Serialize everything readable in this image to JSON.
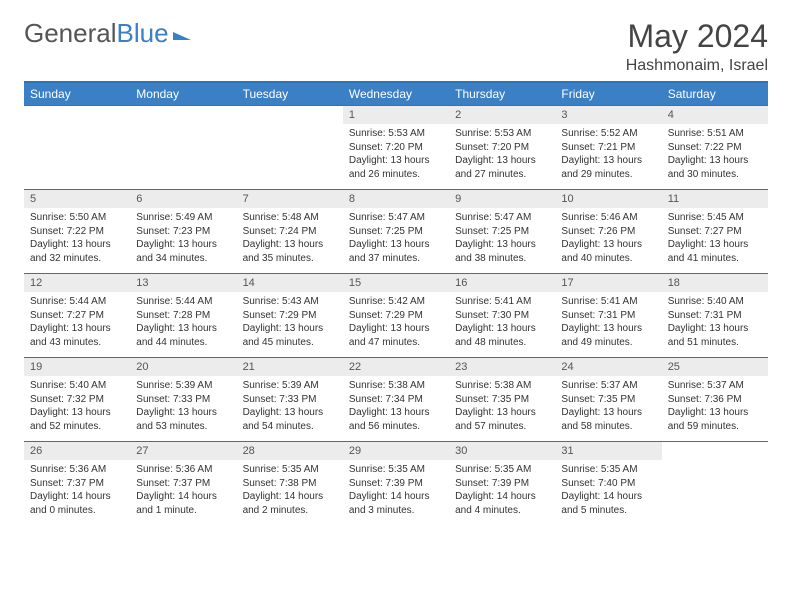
{
  "logo": {
    "part1": "General",
    "part2": "Blue"
  },
  "header": {
    "month_title": "May 2024",
    "location": "Hashmonaim, Israel"
  },
  "colors": {
    "header_bg": "#3b7fc4",
    "header_text": "#ffffff",
    "daynum_bg": "#ececec",
    "rule": "#2d74b5",
    "body_text": "#333333"
  },
  "day_labels": [
    "Sunday",
    "Monday",
    "Tuesday",
    "Wednesday",
    "Thursday",
    "Friday",
    "Saturday"
  ],
  "weeks": [
    [
      {
        "num": "",
        "lines": []
      },
      {
        "num": "",
        "lines": []
      },
      {
        "num": "",
        "lines": []
      },
      {
        "num": "1",
        "lines": [
          "Sunrise: 5:53 AM",
          "Sunset: 7:20 PM",
          "Daylight: 13 hours",
          "and 26 minutes."
        ]
      },
      {
        "num": "2",
        "lines": [
          "Sunrise: 5:53 AM",
          "Sunset: 7:20 PM",
          "Daylight: 13 hours",
          "and 27 minutes."
        ]
      },
      {
        "num": "3",
        "lines": [
          "Sunrise: 5:52 AM",
          "Sunset: 7:21 PM",
          "Daylight: 13 hours",
          "and 29 minutes."
        ]
      },
      {
        "num": "4",
        "lines": [
          "Sunrise: 5:51 AM",
          "Sunset: 7:22 PM",
          "Daylight: 13 hours",
          "and 30 minutes."
        ]
      }
    ],
    [
      {
        "num": "5",
        "lines": [
          "Sunrise: 5:50 AM",
          "Sunset: 7:22 PM",
          "Daylight: 13 hours",
          "and 32 minutes."
        ]
      },
      {
        "num": "6",
        "lines": [
          "Sunrise: 5:49 AM",
          "Sunset: 7:23 PM",
          "Daylight: 13 hours",
          "and 34 minutes."
        ]
      },
      {
        "num": "7",
        "lines": [
          "Sunrise: 5:48 AM",
          "Sunset: 7:24 PM",
          "Daylight: 13 hours",
          "and 35 minutes."
        ]
      },
      {
        "num": "8",
        "lines": [
          "Sunrise: 5:47 AM",
          "Sunset: 7:25 PM",
          "Daylight: 13 hours",
          "and 37 minutes."
        ]
      },
      {
        "num": "9",
        "lines": [
          "Sunrise: 5:47 AM",
          "Sunset: 7:25 PM",
          "Daylight: 13 hours",
          "and 38 minutes."
        ]
      },
      {
        "num": "10",
        "lines": [
          "Sunrise: 5:46 AM",
          "Sunset: 7:26 PM",
          "Daylight: 13 hours",
          "and 40 minutes."
        ]
      },
      {
        "num": "11",
        "lines": [
          "Sunrise: 5:45 AM",
          "Sunset: 7:27 PM",
          "Daylight: 13 hours",
          "and 41 minutes."
        ]
      }
    ],
    [
      {
        "num": "12",
        "lines": [
          "Sunrise: 5:44 AM",
          "Sunset: 7:27 PM",
          "Daylight: 13 hours",
          "and 43 minutes."
        ]
      },
      {
        "num": "13",
        "lines": [
          "Sunrise: 5:44 AM",
          "Sunset: 7:28 PM",
          "Daylight: 13 hours",
          "and 44 minutes."
        ]
      },
      {
        "num": "14",
        "lines": [
          "Sunrise: 5:43 AM",
          "Sunset: 7:29 PM",
          "Daylight: 13 hours",
          "and 45 minutes."
        ]
      },
      {
        "num": "15",
        "lines": [
          "Sunrise: 5:42 AM",
          "Sunset: 7:29 PM",
          "Daylight: 13 hours",
          "and 47 minutes."
        ]
      },
      {
        "num": "16",
        "lines": [
          "Sunrise: 5:41 AM",
          "Sunset: 7:30 PM",
          "Daylight: 13 hours",
          "and 48 minutes."
        ]
      },
      {
        "num": "17",
        "lines": [
          "Sunrise: 5:41 AM",
          "Sunset: 7:31 PM",
          "Daylight: 13 hours",
          "and 49 minutes."
        ]
      },
      {
        "num": "18",
        "lines": [
          "Sunrise: 5:40 AM",
          "Sunset: 7:31 PM",
          "Daylight: 13 hours",
          "and 51 minutes."
        ]
      }
    ],
    [
      {
        "num": "19",
        "lines": [
          "Sunrise: 5:40 AM",
          "Sunset: 7:32 PM",
          "Daylight: 13 hours",
          "and 52 minutes."
        ]
      },
      {
        "num": "20",
        "lines": [
          "Sunrise: 5:39 AM",
          "Sunset: 7:33 PM",
          "Daylight: 13 hours",
          "and 53 minutes."
        ]
      },
      {
        "num": "21",
        "lines": [
          "Sunrise: 5:39 AM",
          "Sunset: 7:33 PM",
          "Daylight: 13 hours",
          "and 54 minutes."
        ]
      },
      {
        "num": "22",
        "lines": [
          "Sunrise: 5:38 AM",
          "Sunset: 7:34 PM",
          "Daylight: 13 hours",
          "and 56 minutes."
        ]
      },
      {
        "num": "23",
        "lines": [
          "Sunrise: 5:38 AM",
          "Sunset: 7:35 PM",
          "Daylight: 13 hours",
          "and 57 minutes."
        ]
      },
      {
        "num": "24",
        "lines": [
          "Sunrise: 5:37 AM",
          "Sunset: 7:35 PM",
          "Daylight: 13 hours",
          "and 58 minutes."
        ]
      },
      {
        "num": "25",
        "lines": [
          "Sunrise: 5:37 AM",
          "Sunset: 7:36 PM",
          "Daylight: 13 hours",
          "and 59 minutes."
        ]
      }
    ],
    [
      {
        "num": "26",
        "lines": [
          "Sunrise: 5:36 AM",
          "Sunset: 7:37 PM",
          "Daylight: 14 hours",
          "and 0 minutes."
        ]
      },
      {
        "num": "27",
        "lines": [
          "Sunrise: 5:36 AM",
          "Sunset: 7:37 PM",
          "Daylight: 14 hours",
          "and 1 minute."
        ]
      },
      {
        "num": "28",
        "lines": [
          "Sunrise: 5:35 AM",
          "Sunset: 7:38 PM",
          "Daylight: 14 hours",
          "and 2 minutes."
        ]
      },
      {
        "num": "29",
        "lines": [
          "Sunrise: 5:35 AM",
          "Sunset: 7:39 PM",
          "Daylight: 14 hours",
          "and 3 minutes."
        ]
      },
      {
        "num": "30",
        "lines": [
          "Sunrise: 5:35 AM",
          "Sunset: 7:39 PM",
          "Daylight: 14 hours",
          "and 4 minutes."
        ]
      },
      {
        "num": "31",
        "lines": [
          "Sunrise: 5:35 AM",
          "Sunset: 7:40 PM",
          "Daylight: 14 hours",
          "and 5 minutes."
        ]
      },
      {
        "num": "",
        "lines": []
      }
    ]
  ]
}
